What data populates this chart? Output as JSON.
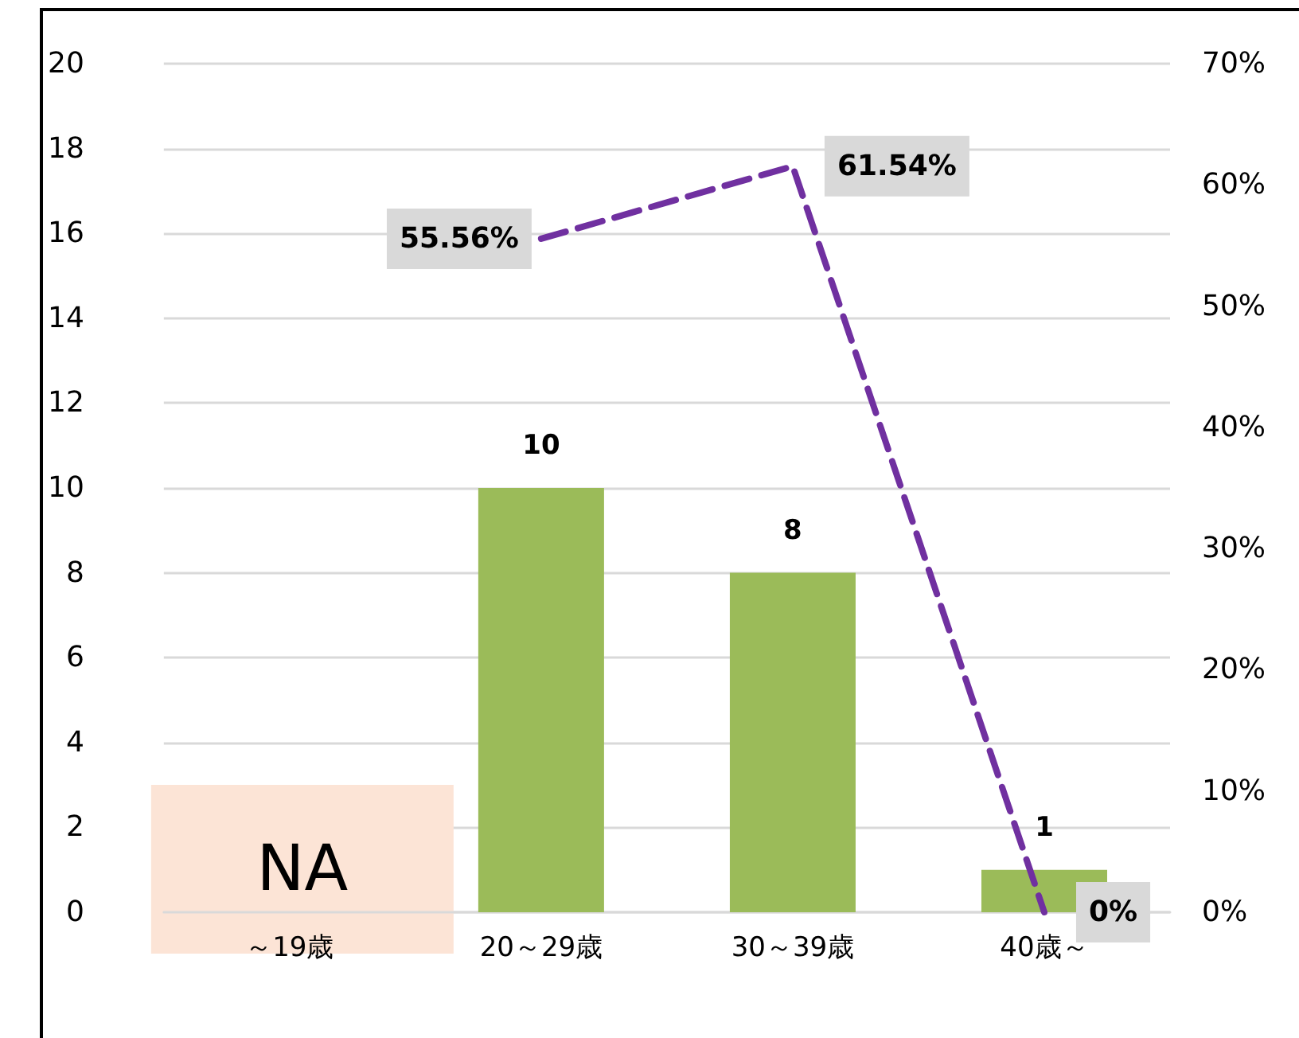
{
  "chart_data": {
    "type": "bar",
    "categories": [
      "～19歳",
      "20～29歳",
      "30～39歳",
      "40歳～"
    ],
    "series": [
      {
        "color": "#9bbb59",
        "values": [
          null,
          10,
          8,
          1
        ]
      },
      {
        "type": "line",
        "axis": "y2",
        "color": "#7030a0",
        "line_style": "dashed",
        "marker": "none",
        "values": [
          null,
          55.56,
          61.54,
          0
        ],
        "value_labels": [
          null,
          "55.56%",
          "61.54%",
          "0%"
        ]
      }
    ],
    "ylim": [
      0,
      20
    ],
    "yticks": [
      0,
      2,
      4,
      6,
      8,
      10,
      12,
      14,
      16,
      18,
      20
    ],
    "y2lim": [
      0,
      70
    ],
    "y2ticks": [
      {
        "value": 0,
        "label": "0%"
      },
      {
        "value": 10,
        "label": "10%"
      },
      {
        "value": 20,
        "label": "20%"
      },
      {
        "value": 30,
        "label": "30%"
      },
      {
        "value": 40,
        "label": "40%"
      },
      {
        "value": 50,
        "label": "50%"
      },
      {
        "value": 60,
        "label": "60%"
      },
      {
        "value": 70,
        "label": "70%"
      }
    ],
    "grid": "y",
    "data_labels": true,
    "annotations": [
      "NA"
    ]
  }
}
